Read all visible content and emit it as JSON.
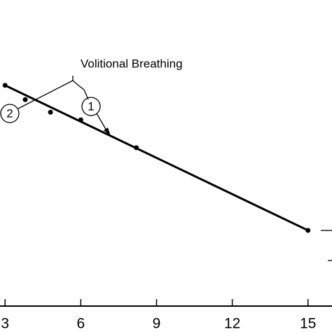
{
  "chart_data": {
    "type": "scatter",
    "annotation": "Volitional Breathing",
    "markers": [
      "1",
      "2"
    ],
    "x": [
      3,
      3.8,
      4.8,
      6,
      8.2,
      15
    ],
    "values": [
      74.3,
      70,
      66.2,
      63.9,
      55.5,
      30.6
    ],
    "fit": {
      "x": [
        3,
        15
      ],
      "values": [
        74.3,
        30.6
      ]
    },
    "color": "#000000",
    "xlim": [
      2.8,
      15.95
    ],
    "xticks": [
      3,
      6,
      9,
      12,
      15
    ],
    "ylim": [
      0,
      100
    ]
  }
}
